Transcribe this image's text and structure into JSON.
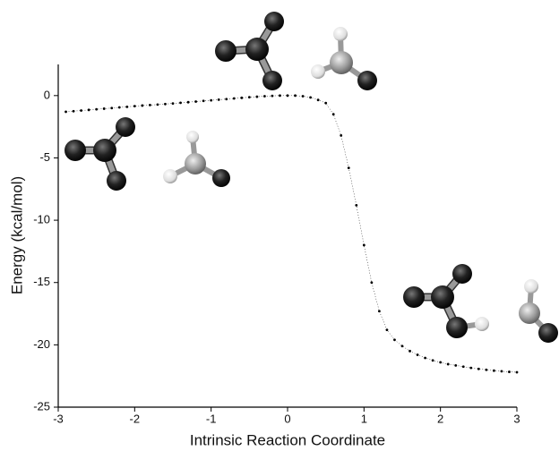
{
  "chart_data": {
    "type": "scatter",
    "xlabel": "Intrinsic Reaction Coordinate",
    "ylabel": "Energy (kcal/mol)",
    "x": [
      -2.9,
      -2.8,
      -2.7,
      -2.6,
      -2.5,
      -2.4,
      -2.3,
      -2.2,
      -2.1,
      -2.0,
      -1.9,
      -1.8,
      -1.7,
      -1.6,
      -1.5,
      -1.4,
      -1.3,
      -1.2,
      -1.1,
      -1.0,
      -0.9,
      -0.8,
      -0.7,
      -0.6,
      -0.5,
      -0.4,
      -0.3,
      -0.2,
      -0.1,
      0,
      0.1,
      0.2,
      0.3,
      0.4,
      0.5,
      0.6,
      0.7,
      0.8,
      0.9,
      1.0,
      1.1,
      1.2,
      1.3,
      1.4,
      1.5,
      1.6,
      1.7,
      1.8,
      1.9,
      2.0,
      2.1,
      2.2,
      2.3,
      2.4,
      2.5,
      2.6,
      2.7,
      2.8,
      2.9,
      3.0
    ],
    "values": [
      -1.3,
      -1.25,
      -1.2,
      -1.15,
      -1.1,
      -1.05,
      -1.0,
      -0.95,
      -0.9,
      -0.85,
      -0.8,
      -0.76,
      -0.72,
      -0.68,
      -0.63,
      -0.58,
      -0.53,
      -0.48,
      -0.43,
      -0.38,
      -0.33,
      -0.28,
      -0.23,
      -0.18,
      -0.13,
      -0.09,
      -0.05,
      -0.02,
      0,
      0,
      0,
      -0.05,
      -0.15,
      -0.35,
      -0.6,
      -1.5,
      -3.2,
      -5.8,
      -8.8,
      -12.0,
      -15.0,
      -17.3,
      -18.8,
      -19.6,
      -20.1,
      -20.5,
      -20.8,
      -21.05,
      -21.25,
      -21.4,
      -21.55,
      -21.65,
      -21.75,
      -21.85,
      -21.93,
      -22.0,
      -22.07,
      -22.12,
      -22.17,
      -22.2
    ],
    "color": "#000000",
    "xlim": [
      -3,
      3
    ],
    "xticks": [
      -3,
      -2,
      -1,
      0,
      1,
      2,
      3
    ],
    "ylim": [
      -25,
      2.5
    ],
    "yticks": [
      -25,
      -20,
      -15,
      -10,
      -5,
      0
    ]
  }
}
